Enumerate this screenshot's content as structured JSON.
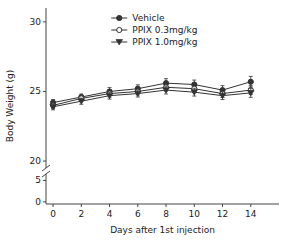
{
  "chart_data": [
    {
      "type": "line",
      "ylabel": "Body Weight (g)",
      "x": [
        0,
        2,
        4,
        6,
        8,
        10,
        12,
        14
      ],
      "xlim": [
        -0.5,
        16
      ],
      "ylim": [
        19.5,
        31
      ],
      "yticks": [
        20,
        25,
        30
      ],
      "tick_labels": "y",
      "legend": "top",
      "series": [
        {
          "name": "Vehicle",
          "color": "#333333",
          "marker": "circle",
          "line_style": "solid",
          "values": [
            24.2,
            24.6,
            25.0,
            25.2,
            25.6,
            25.5,
            25.1,
            25.7
          ],
          "error": [
            0.22,
            0.22,
            0.28,
            0.28,
            0.32,
            0.32,
            0.32,
            0.38
          ]
        },
        {
          "name": "PPIX 0.3mg/kg",
          "color": "#333333",
          "marker": "open-circle",
          "line_style": "solid",
          "values": [
            24.0,
            24.5,
            24.85,
            25.0,
            25.3,
            25.2,
            24.85,
            25.1
          ],
          "error": [
            0.22,
            0.22,
            0.25,
            0.25,
            0.28,
            0.28,
            0.28,
            0.32
          ]
        },
        {
          "name": "PPIX 1.0mg/kg",
          "color": "#333333",
          "marker": "triangle-down",
          "line_style": "solid",
          "values": [
            23.9,
            24.3,
            24.7,
            24.85,
            25.1,
            24.95,
            24.7,
            24.9
          ],
          "error": [
            0.22,
            0.22,
            0.25,
            0.25,
            0.28,
            0.28,
            0.28,
            0.32
          ]
        }
      ]
    },
    {
      "type": "line",
      "xlabel": "Days after 1st injection",
      "xlim": [
        -0.5,
        16
      ],
      "xticks": [
        0,
        2,
        4,
        6,
        8,
        10,
        12,
        14
      ],
      "ylim": [
        -0.5,
        6.5
      ],
      "yticks": [
        0,
        5
      ]
    }
  ]
}
